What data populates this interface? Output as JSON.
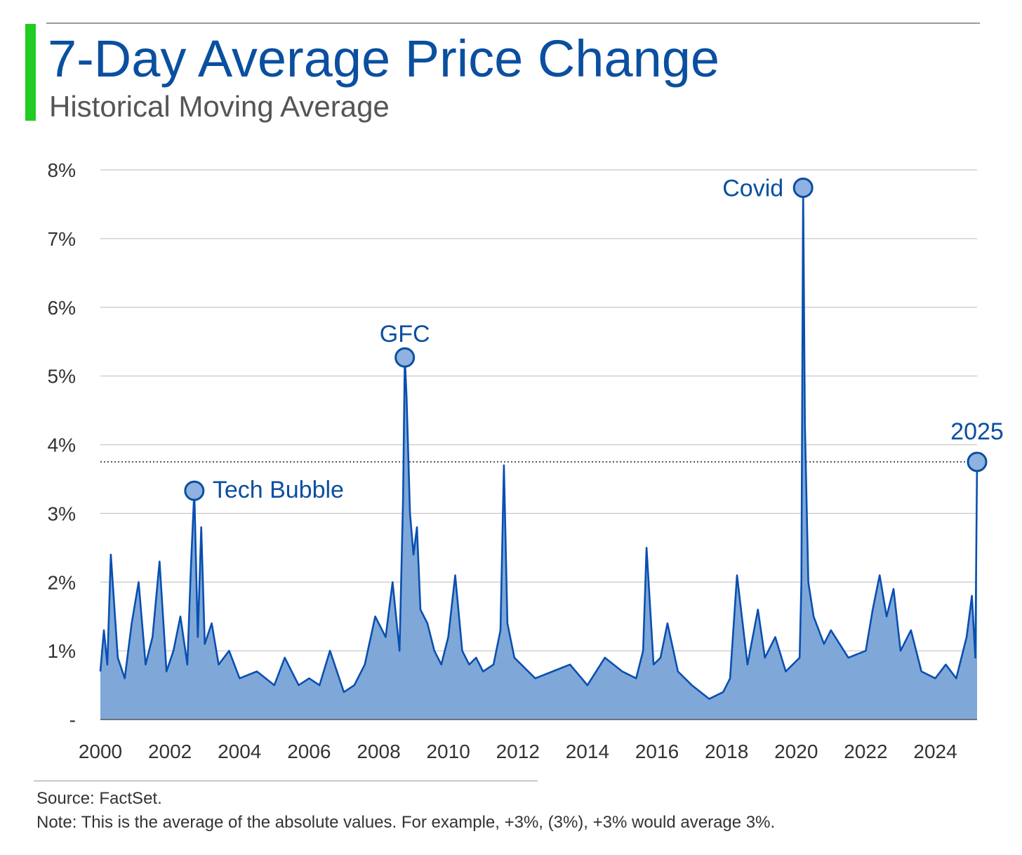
{
  "header": {
    "title": "7-Day Average Price Change",
    "subtitle": "Historical Moving Average"
  },
  "footer": {
    "source": "Source: FactSet.",
    "note": "Note: This is the average of the absolute values. For example, +3%, (3%), +3% would average 3%."
  },
  "colors": {
    "accent": "#22cc22",
    "title": "#0a4fa0",
    "line": "#0a4fb0",
    "area": "#7fa8d8",
    "marker_fill": "#8fb2e0",
    "marker_stroke": "#0a4fa0",
    "grid": "#c8c8c8",
    "reference_line": "#333333"
  },
  "chart_data": {
    "type": "area",
    "title": "7-Day Average Price Change",
    "subtitle": "Historical Moving Average",
    "xlabel": "",
    "ylabel": "",
    "xlim": [
      2000,
      2025.2
    ],
    "ylim": [
      0,
      8
    ],
    "x_ticks": [
      "2000",
      "2002",
      "2004",
      "2006",
      "2008",
      "2010",
      "2012",
      "2014",
      "2016",
      "2018",
      "2020",
      "2022",
      "2024"
    ],
    "y_ticks": [
      "-",
      "1%",
      "2%",
      "3%",
      "4%",
      "5%",
      "6%",
      "7%",
      "8%"
    ],
    "grid": true,
    "reference_line": {
      "y": 3.75,
      "style": "dotted"
    },
    "series": [
      {
        "values_unit": "percent",
        "x": [
          2000.0,
          2000.1,
          2000.2,
          2000.3,
          2000.5,
          2000.7,
          2000.9,
          2001.1,
          2001.3,
          2001.5,
          2001.7,
          2001.9,
          2002.1,
          2002.3,
          2002.5,
          2002.6,
          2002.7,
          2002.8,
          2002.9,
          2003.0,
          2003.2,
          2003.4,
          2003.7,
          2004.0,
          2004.5,
          2005.0,
          2005.3,
          2005.7,
          2006.0,
          2006.3,
          2006.6,
          2007.0,
          2007.3,
          2007.6,
          2007.9,
          2008.2,
          2008.4,
          2008.6,
          2008.7,
          2008.75,
          2008.8,
          2008.9,
          2009.0,
          2009.1,
          2009.2,
          2009.4,
          2009.6,
          2009.8,
          2010.0,
          2010.2,
          2010.4,
          2010.6,
          2010.8,
          2011.0,
          2011.3,
          2011.5,
          2011.6,
          2011.7,
          2011.9,
          2012.1,
          2012.5,
          2013.0,
          2013.5,
          2014.0,
          2014.5,
          2015.0,
          2015.4,
          2015.6,
          2015.7,
          2015.9,
          2016.1,
          2016.3,
          2016.6,
          2017.0,
          2017.5,
          2017.9,
          2018.1,
          2018.3,
          2018.6,
          2018.9,
          2019.1,
          2019.4,
          2019.7,
          2019.9,
          2020.1,
          2020.15,
          2020.2,
          2020.25,
          2020.35,
          2020.5,
          2020.8,
          2021.0,
          2021.5,
          2022.0,
          2022.2,
          2022.4,
          2022.6,
          2022.8,
          2023.0,
          2023.3,
          2023.6,
          2024.0,
          2024.3,
          2024.6,
          2024.9,
          2025.05,
          2025.15,
          2025.2
        ],
        "values": [
          0.7,
          1.3,
          0.8,
          2.4,
          0.9,
          0.6,
          1.4,
          2.0,
          0.8,
          1.2,
          2.3,
          0.7,
          1.0,
          1.5,
          0.8,
          2.2,
          3.33,
          1.2,
          2.8,
          1.1,
          1.4,
          0.8,
          1.0,
          0.6,
          0.7,
          0.5,
          0.9,
          0.5,
          0.6,
          0.5,
          1.0,
          0.4,
          0.5,
          0.8,
          1.5,
          1.2,
          2.0,
          1.0,
          3.2,
          5.27,
          4.7,
          3.0,
          2.4,
          2.8,
          1.6,
          1.4,
          1.0,
          0.8,
          1.2,
          2.1,
          1.0,
          0.8,
          0.9,
          0.7,
          0.8,
          1.3,
          3.7,
          1.4,
          0.9,
          0.8,
          0.6,
          0.7,
          0.8,
          0.5,
          0.9,
          0.7,
          0.6,
          1.0,
          2.5,
          0.8,
          0.9,
          1.4,
          0.7,
          0.5,
          0.3,
          0.4,
          0.6,
          2.1,
          0.8,
          1.6,
          0.9,
          1.2,
          0.7,
          0.8,
          0.9,
          2.0,
          7.74,
          4.3,
          2.0,
          1.5,
          1.1,
          1.3,
          0.9,
          1.0,
          1.6,
          2.1,
          1.5,
          1.9,
          1.0,
          1.3,
          0.7,
          0.6,
          0.8,
          0.6,
          1.2,
          1.8,
          0.9,
          3.75
        ]
      }
    ],
    "annotations": [
      {
        "label": "Tech Bubble",
        "x": 2002.7,
        "y": 3.33
      },
      {
        "label": "GFC",
        "x": 2008.75,
        "y": 5.27
      },
      {
        "label": "Covid",
        "x": 2020.2,
        "y": 7.74
      },
      {
        "label": "2025",
        "x": 2025.2,
        "y": 3.75
      }
    ]
  }
}
